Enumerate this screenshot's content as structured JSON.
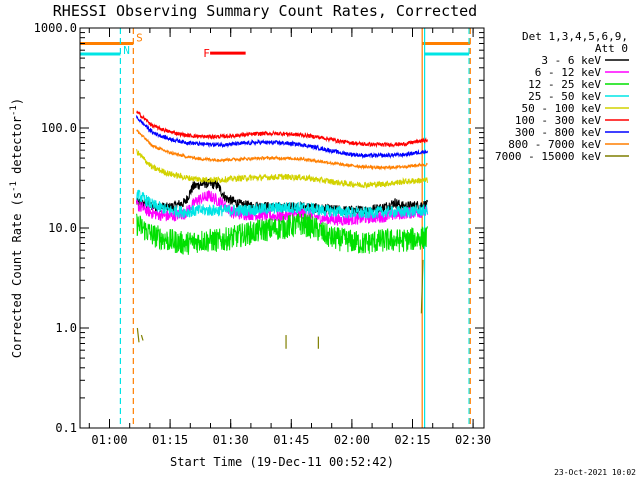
{
  "chart_data": {
    "type": "line",
    "title": "RHESSI Observing Summary Count Rates, Corrected",
    "xlabel": "Start Time (19-Dec-11 00:52:42)",
    "ylabel": "Corrected Count Rate (s⁻¹ detector⁻¹)",
    "ylabel_parts": {
      "main": "Corrected Count Rate (s",
      "sup1": "-1",
      "mid": " detector",
      "sup2": "-1",
      "end": ")"
    },
    "y_scale": "log",
    "ylim": [
      0.1,
      1000.0
    ],
    "y_ticks": [
      {
        "value": 0.1,
        "label": "0.1"
      },
      {
        "value": 1.0,
        "label": "1.0"
      },
      {
        "value": 10.0,
        "label": "10.0"
      },
      {
        "value": 100.0,
        "label": "100.0"
      },
      {
        "value": 1000.0,
        "label": "1000.0"
      }
    ],
    "x_unit": "minutes after 00:52:42",
    "xlim": [
      0,
      100
    ],
    "x_ticks": [
      {
        "value": 7.3,
        "label": "01:00"
      },
      {
        "value": 22.3,
        "label": "01:15"
      },
      {
        "value": 37.3,
        "label": "01:30"
      },
      {
        "value": 52.3,
        "label": "01:45"
      },
      {
        "value": 67.3,
        "label": "02:00"
      },
      {
        "value": 82.3,
        "label": "02:15"
      },
      {
        "value": 97.3,
        "label": "02:30"
      }
    ],
    "legend": {
      "placement": "right",
      "header_line1": "Det 1,3,4,5,6,9,",
      "header_line2": "Att 0",
      "entries": [
        {
          "label": "3 - 6 keV",
          "color": "#000000"
        },
        {
          "label": "6 - 12 keV",
          "color": "#ff00ff"
        },
        {
          "label": "12 - 25 keV",
          "color": "#00e000"
        },
        {
          "label": "25 - 50 keV",
          "color": "#00e5e5"
        },
        {
          "label": "50 - 100 keV",
          "color": "#d2d200"
        },
        {
          "label": "100 - 300 keV",
          "color": "#ff0000"
        },
        {
          "label": "300 - 800 keV",
          "color": "#0000ff"
        },
        {
          "label": "800 - 7000 keV",
          "color": "#ff7f00"
        },
        {
          "label": "7000 - 15000 keV",
          "color": "#7f7f00"
        }
      ]
    },
    "series": [
      {
        "name": "3 - 6 keV",
        "color": "#000000",
        "noise": 0.05,
        "points": [
          [
            14,
            18
          ],
          [
            18,
            16.5
          ],
          [
            22,
            16
          ],
          [
            26,
            18
          ],
          [
            28,
            26
          ],
          [
            31,
            28
          ],
          [
            34,
            27
          ],
          [
            36,
            20
          ],
          [
            40,
            17
          ],
          [
            45,
            16.5
          ],
          [
            50,
            16
          ],
          [
            55,
            16.5
          ],
          [
            60,
            15.5
          ],
          [
            65,
            15
          ],
          [
            70,
            15
          ],
          [
            75,
            16
          ],
          [
            78,
            18
          ],
          [
            80,
            16.5
          ],
          [
            85,
            17
          ]
        ]
      },
      {
        "name": "6 - 12 keV",
        "color": "#ff00ff",
        "noise": 0.06,
        "points": [
          [
            14,
            17
          ],
          [
            18,
            14
          ],
          [
            22,
            13
          ],
          [
            26,
            14
          ],
          [
            29,
            19
          ],
          [
            32,
            21
          ],
          [
            35,
            18
          ],
          [
            38,
            14
          ],
          [
            45,
            13.5
          ],
          [
            50,
            13
          ],
          [
            55,
            14
          ],
          [
            60,
            12.5
          ],
          [
            65,
            12
          ],
          [
            70,
            12.5
          ],
          [
            75,
            13
          ],
          [
            80,
            14
          ],
          [
            85,
            14.5
          ]
        ]
      },
      {
        "name": "12 - 25 keV",
        "color": "#00e000",
        "noise": 0.12,
        "points": [
          [
            14,
            11
          ],
          [
            18,
            8.5
          ],
          [
            22,
            7.5
          ],
          [
            26,
            7
          ],
          [
            30,
            7.5
          ],
          [
            35,
            7.5
          ],
          [
            40,
            8.5
          ],
          [
            45,
            9.5
          ],
          [
            50,
            10
          ],
          [
            55,
            11
          ],
          [
            58,
            10
          ],
          [
            62,
            8
          ],
          [
            66,
            7.5
          ],
          [
            70,
            7
          ],
          [
            75,
            7.5
          ],
          [
            80,
            7.5
          ],
          [
            85,
            8
          ]
        ]
      },
      {
        "name": "25 - 50 keV",
        "color": "#00e5e5",
        "noise": 0.06,
        "points": [
          [
            14,
            22
          ],
          [
            18,
            17
          ],
          [
            22,
            15
          ],
          [
            26,
            14.5
          ],
          [
            30,
            15
          ],
          [
            35,
            15
          ],
          [
            40,
            15
          ],
          [
            45,
            15.5
          ],
          [
            50,
            16
          ],
          [
            55,
            16
          ],
          [
            60,
            15
          ],
          [
            65,
            14.5
          ],
          [
            70,
            14
          ],
          [
            75,
            14.5
          ],
          [
            80,
            14.5
          ],
          [
            85,
            15
          ]
        ]
      },
      {
        "name": "50 - 100 keV",
        "color": "#d2d200",
        "noise": 0.03,
        "points": [
          [
            14,
            58
          ],
          [
            18,
            40
          ],
          [
            22,
            35
          ],
          [
            26,
            32
          ],
          [
            30,
            30.5
          ],
          [
            35,
            30.5
          ],
          [
            40,
            31.5
          ],
          [
            45,
            32
          ],
          [
            50,
            32.5
          ],
          [
            55,
            32
          ],
          [
            60,
            30
          ],
          [
            65,
            28
          ],
          [
            70,
            27
          ],
          [
            75,
            27.5
          ],
          [
            80,
            29
          ],
          [
            85,
            30
          ]
        ]
      },
      {
        "name": "100 - 300 keV",
        "color": "#ff0000",
        "noise": 0.02,
        "points": [
          [
            14,
            145
          ],
          [
            18,
            105
          ],
          [
            22,
            92
          ],
          [
            26,
            85
          ],
          [
            30,
            82
          ],
          [
            35,
            82
          ],
          [
            40,
            85
          ],
          [
            45,
            88
          ],
          [
            50,
            88
          ],
          [
            55,
            85
          ],
          [
            60,
            80
          ],
          [
            65,
            73
          ],
          [
            70,
            69
          ],
          [
            75,
            68
          ],
          [
            80,
            69
          ],
          [
            85,
            75
          ]
        ]
      },
      {
        "name": "300 - 800 keV",
        "color": "#0000ff",
        "noise": 0.02,
        "points": [
          [
            14,
            128
          ],
          [
            18,
            90
          ],
          [
            22,
            78
          ],
          [
            26,
            72
          ],
          [
            30,
            69
          ],
          [
            35,
            68
          ],
          [
            40,
            70
          ],
          [
            45,
            72
          ],
          [
            50,
            71
          ],
          [
            55,
            68
          ],
          [
            60,
            62
          ],
          [
            65,
            56
          ],
          [
            70,
            53
          ],
          [
            75,
            53
          ],
          [
            80,
            54
          ],
          [
            85,
            58
          ]
        ]
      },
      {
        "name": "800 - 7000 keV",
        "color": "#ff7f00",
        "noise": 0.015,
        "points": [
          [
            14,
            95
          ],
          [
            18,
            66
          ],
          [
            22,
            57
          ],
          [
            26,
            52
          ],
          [
            30,
            49
          ],
          [
            35,
            48
          ],
          [
            40,
            49
          ],
          [
            45,
            50
          ],
          [
            50,
            50
          ],
          [
            55,
            49
          ],
          [
            60,
            46
          ],
          [
            65,
            43
          ],
          [
            70,
            41
          ],
          [
            75,
            40
          ],
          [
            80,
            41
          ],
          [
            85,
            43
          ]
        ]
      }
    ],
    "attenuator_fragments": {
      "name": "7000 - 15000 keV",
      "color": "#7f7f00",
      "segments": [
        [
          [
            14.2,
            1.0
          ],
          [
            14.6,
            0.72
          ]
        ],
        [
          [
            15.2,
            0.85
          ],
          [
            15.6,
            0.75
          ]
        ],
        [
          [
            51,
            0.85
          ],
          [
            51,
            0.62
          ]
        ],
        [
          [
            59,
            0.82
          ],
          [
            59,
            0.62
          ]
        ],
        [
          [
            84.5,
            1.4
          ],
          [
            84.9,
            4.8
          ]
        ]
      ]
    },
    "annotations": [
      {
        "label": "S",
        "color": "#ff7f00",
        "x": 13.9,
        "y": 800
      },
      {
        "label": "N",
        "color": "#00e5e5",
        "x": 10.7,
        "y": 600
      },
      {
        "label": "F",
        "color": "#ff0000",
        "x": 30.5,
        "y": 560
      }
    ],
    "flare_bar": {
      "color": "#ff0000",
      "x_start": 32.2,
      "x_end": 41.0,
      "y": 560
    },
    "night_markers": [
      {
        "x": 10.0,
        "style": "dashed"
      },
      {
        "x": 85.3,
        "style": "solid"
      },
      {
        "x": 96.3,
        "style": "dashed"
      }
    ],
    "saa_markers": [
      {
        "x": 13.2,
        "style": "dashed"
      },
      {
        "x": 84.7,
        "style": "solid"
      },
      {
        "x": 96.6,
        "style": "dashed"
      }
    ],
    "state_bars": {
      "orange": [
        [
          0,
          13.2
        ],
        [
          84.7,
          96.6
        ]
      ],
      "cyan": [
        [
          0,
          10.0
        ],
        [
          85.3,
          96.3
        ]
      ],
      "orange_y": 700,
      "cyan_y": 550
    },
    "data_window": [
      14,
      86
    ]
  },
  "footer": {
    "date": "23-Oct-2021 10:02"
  },
  "colors": {
    "axis": "#000000",
    "night": "#00e5e5",
    "saa": "#ff7f00",
    "flare": "#ff0000"
  }
}
